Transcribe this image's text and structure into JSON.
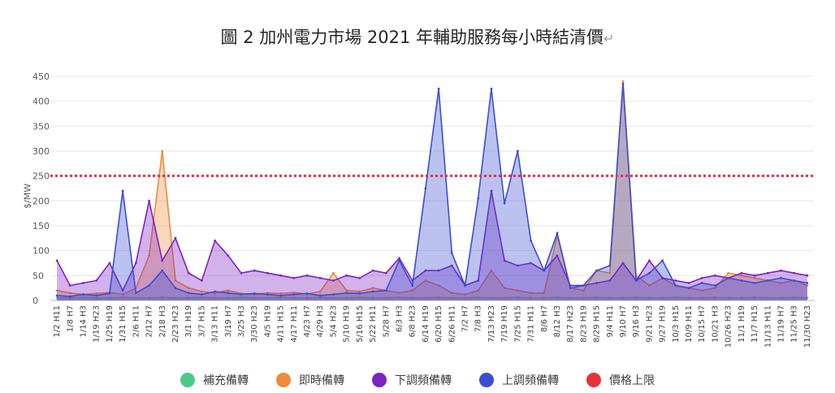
{
  "chart_data": {
    "type": "line",
    "title": "圖 2 加州電力市場 2021 年輔助服務每小時結清價",
    "ylabel": "$/MW",
    "ylim": [
      0,
      450
    ],
    "yticks": [
      0,
      50,
      100,
      150,
      200,
      250,
      300,
      350,
      400,
      450
    ],
    "grid": true,
    "legend_position": "bottom",
    "x_tick_labels": [
      "1/2 H11",
      "1/8 H7",
      "1/14 H3",
      "1/19 H23",
      "1/25 H19",
      "1/31 H15",
      "2/6 H11",
      "2/12 H7",
      "2/18 H3",
      "2/23 H23",
      "3/1 H19",
      "3/7 H15",
      "3/13 H11",
      "3/19 H7",
      "3/25 H3",
      "3/30 H23",
      "4/5 H19",
      "4/11 H15",
      "4/17 H11",
      "4/23 H7",
      "4/29 H3",
      "5/4 H23",
      "5/10 H19",
      "5/16 H15",
      "5/22 H11",
      "5/28 H7",
      "6/3 H3",
      "6/8 H23",
      "6/14 H19",
      "6/20 H15",
      "6/26 H11",
      "7/2 H7",
      "7/8 H3",
      "7/13 H23",
      "7/19 H19",
      "7/25 H15",
      "7/31 H11",
      "8/6 H7",
      "8/12 H3",
      "8/17 H23",
      "8/23 H19",
      "8/29 H15",
      "9/4 H11",
      "9/10 H7",
      "9/16 H3",
      "9/21 H23",
      "9/27 H19",
      "10/3 H15",
      "10/9 H11",
      "10/15 H7",
      "10/21 H3",
      "10/26 H23",
      "11/1 H19",
      "11/7 H15",
      "11/13 H11",
      "11/19 H7",
      "11/25 H3",
      "11/30 H23"
    ],
    "price_cap": 250,
    "series": [
      {
        "name": "補充備轉",
        "color": "#4CC98A",
        "values": [
          5,
          5,
          6,
          5,
          5,
          6,
          5,
          5,
          6,
          5,
          5,
          6,
          5,
          5,
          6,
          5,
          5,
          6,
          5,
          5,
          6,
          5,
          5,
          6,
          5,
          5,
          6,
          5,
          5,
          6,
          5,
          5,
          6,
          5,
          5,
          6,
          5,
          5,
          6,
          5,
          5,
          6,
          5,
          5,
          6,
          5,
          5,
          6,
          5,
          5,
          6,
          5,
          5,
          6,
          5,
          5,
          6,
          5
        ]
      },
      {
        "name": "即時備轉",
        "color": "#ED8B3A",
        "values": [
          20,
          15,
          12,
          14,
          16,
          12,
          25,
          90,
          300,
          40,
          25,
          18,
          15,
          20,
          14,
          12,
          15,
          14,
          16,
          13,
          18,
          55,
          20,
          18,
          25,
          20,
          15,
          20,
          40,
          30,
          15,
          12,
          20,
          60,
          25,
          20,
          15,
          15,
          130,
          25,
          20,
          60,
          55,
          440,
          50,
          30,
          45,
          30,
          25,
          20,
          25,
          55,
          50,
          45,
          40,
          35,
          40,
          30
        ]
      },
      {
        "name": "下調頻備轉",
        "color": "#7E22C4",
        "values": [
          80,
          30,
          35,
          40,
          75,
          20,
          75,
          200,
          80,
          125,
          55,
          40,
          120,
          90,
          55,
          60,
          55,
          50,
          45,
          50,
          45,
          40,
          50,
          45,
          60,
          55,
          85,
          40,
          60,
          60,
          70,
          30,
          40,
          220,
          80,
          70,
          75,
          60,
          90,
          30,
          30,
          35,
          40,
          75,
          40,
          80,
          45,
          40,
          35,
          45,
          50,
          45,
          55,
          50,
          55,
          60,
          55,
          50
        ]
      },
      {
        "name": "上調頻備轉",
        "color": "#3B4FD0",
        "values": [
          10,
          8,
          12,
          10,
          14,
          220,
          15,
          30,
          60,
          25,
          15,
          12,
          18,
          15,
          12,
          14,
          12,
          10,
          12,
          14,
          10,
          12,
          15,
          14,
          18,
          20,
          80,
          30,
          225,
          425,
          95,
          30,
          205,
          425,
          195,
          300,
          120,
          60,
          135,
          25,
          30,
          60,
          70,
          435,
          40,
          55,
          80,
          30,
          25,
          35,
          30,
          45,
          40,
          35,
          40,
          45,
          40,
          35
        ]
      },
      {
        "name": "價格上限",
        "color": "#E8323A",
        "values": [
          250,
          250,
          250,
          250,
          250,
          250,
          250,
          250,
          250,
          250,
          250,
          250,
          250,
          250,
          250,
          250,
          250,
          250,
          250,
          250,
          250,
          250,
          250,
          250,
          250,
          250,
          250,
          250,
          250,
          250,
          250,
          250,
          250,
          250,
          250,
          250,
          250,
          250,
          250,
          250,
          250,
          250,
          250,
          250,
          250,
          250,
          250,
          250,
          250,
          250,
          250,
          250,
          250,
          250,
          250,
          250,
          250,
          250
        ]
      }
    ]
  }
}
